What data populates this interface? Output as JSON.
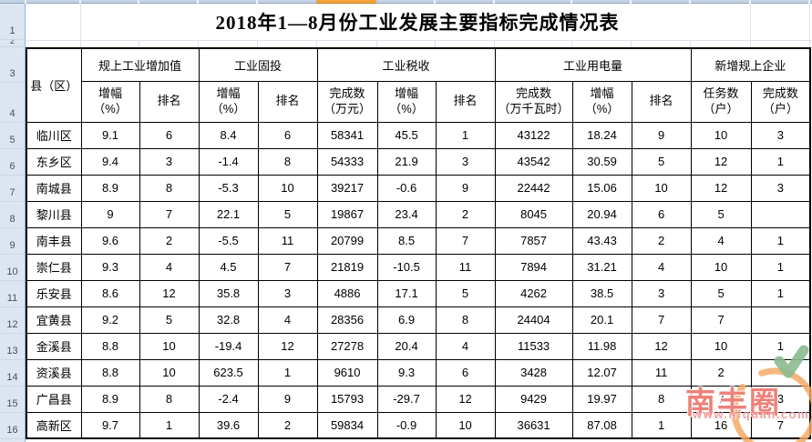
{
  "title": "2018年1—8月份工业发展主要指标完成情况表",
  "sheet": {
    "row_numbers": [
      "1",
      "2",
      "3",
      "4",
      "5",
      "6",
      "7",
      "8",
      "9",
      "10",
      "11",
      "12",
      "13",
      "14",
      "15",
      "16"
    ]
  },
  "table": {
    "corner_header": "县（区）",
    "groups": [
      {
        "label": "规上工业增加值"
      },
      {
        "label": "工业固投"
      },
      {
        "label": "工业税收"
      },
      {
        "label": "工业用电量"
      },
      {
        "label": "新增规上企业"
      }
    ],
    "sub_headers": [
      "增幅\n（%）",
      "排名",
      "增幅\n（%）",
      "排名",
      "完成数\n（万元）",
      "增幅\n（%）",
      "排名",
      "完成数\n（万千瓦时）",
      "增幅\n（%）",
      "排名",
      "任务数\n（户）",
      "完成数\n（户）"
    ],
    "rows": [
      {
        "name": "临川区",
        "cells": [
          "9.1",
          "6",
          "8.4",
          "6",
          "58341",
          "45.5",
          "1",
          "43122",
          "18.24",
          "9",
          "10",
          "3"
        ]
      },
      {
        "name": "东乡区",
        "cells": [
          "9.4",
          "3",
          "-1.4",
          "8",
          "54333",
          "21.9",
          "3",
          "43542",
          "30.59",
          "5",
          "12",
          "1"
        ]
      },
      {
        "name": "南城县",
        "cells": [
          "8.9",
          "8",
          "-5.3",
          "10",
          "39217",
          "-0.6",
          "9",
          "22442",
          "15.06",
          "10",
          "12",
          "3"
        ]
      },
      {
        "name": "黎川县",
        "cells": [
          "9",
          "7",
          "22.1",
          "5",
          "19867",
          "23.4",
          "2",
          "8045",
          "20.94",
          "6",
          "5",
          ""
        ]
      },
      {
        "name": "南丰县",
        "cells": [
          "9.6",
          "2",
          "-5.5",
          "11",
          "20799",
          "8.5",
          "7",
          "7857",
          "43.43",
          "2",
          "4",
          "1"
        ]
      },
      {
        "name": "崇仁县",
        "cells": [
          "9.3",
          "4",
          "4.5",
          "7",
          "21819",
          "-10.5",
          "11",
          "7894",
          "31.21",
          "4",
          "10",
          "1"
        ]
      },
      {
        "name": "乐安县",
        "cells": [
          "8.6",
          "12",
          "35.8",
          "3",
          "4886",
          "17.1",
          "5",
          "4262",
          "38.5",
          "3",
          "5",
          "1"
        ]
      },
      {
        "name": "宜黄县",
        "cells": [
          "9.2",
          "5",
          "32.8",
          "4",
          "28356",
          "6.9",
          "8",
          "24404",
          "20.1",
          "7",
          "7",
          ""
        ]
      },
      {
        "name": "金溪县",
        "cells": [
          "8.8",
          "10",
          "-19.4",
          "12",
          "27278",
          "20.4",
          "4",
          "11533",
          "11.98",
          "12",
          "10",
          "1"
        ]
      },
      {
        "name": "资溪县",
        "cells": [
          "8.8",
          "10",
          "623.5",
          "1",
          "9610",
          "9.3",
          "6",
          "3428",
          "12.07",
          "11",
          "2",
          ""
        ]
      },
      {
        "name": "广昌县",
        "cells": [
          "8.9",
          "8",
          "-2.4",
          "9",
          "15793",
          "-29.7",
          "12",
          "9429",
          "19.97",
          "8",
          "7",
          "3"
        ]
      },
      {
        "name": "高新区",
        "cells": [
          "9.7",
          "1",
          "39.6",
          "2",
          "59834",
          "-0.9",
          "10",
          "36631",
          "87.08",
          "1",
          "16",
          "7"
        ]
      }
    ]
  },
  "watermark": {
    "title": "南丰圈",
    "url": "www.nfquan.com"
  },
  "colors": {
    "selected_column_orange": "#f2a33c",
    "row_header_bg": "#dce6f1",
    "row_header_border": "#95b3d7",
    "watermark_red": "#eb7167",
    "watermark_orange": "#f5aa68",
    "watermark_green": "#8cba8f"
  }
}
